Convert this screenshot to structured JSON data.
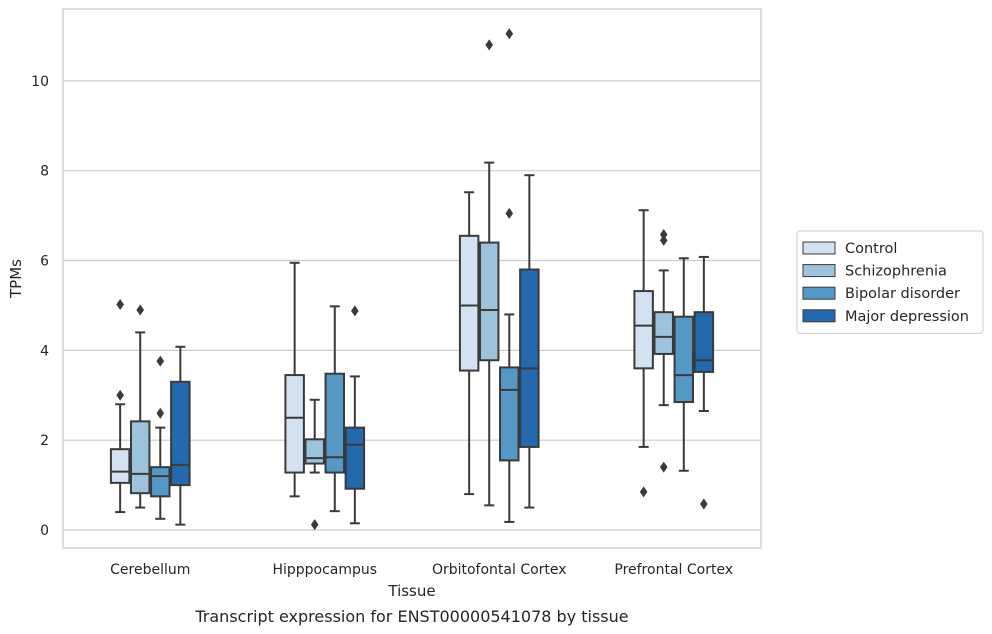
{
  "chart_data": {
    "type": "box",
    "title": "",
    "caption": "Transcript expression for ENST00000541078 by tissue",
    "xlabel": "Tissue",
    "ylabel": "TPMs",
    "ylim": [
      -0.4,
      11.6
    ],
    "yticks": [
      0,
      2,
      4,
      6,
      8,
      10
    ],
    "grid": "horizontal",
    "legend_position": "right",
    "categories": [
      "Cerebellum",
      "Hipppocampus",
      "Orbitofontal Cortex",
      "Prefrontal Cortex"
    ],
    "series": [
      {
        "name": "Control",
        "color": "#d3e1f0",
        "boxes": [
          {
            "whisker_low": 0.4,
            "q1": 1.05,
            "median": 1.3,
            "q3": 1.8,
            "whisker_high": 2.8,
            "outliers": [
              3.0,
              5.02
            ]
          },
          {
            "whisker_low": 0.75,
            "q1": 1.28,
            "median": 2.5,
            "q3": 3.45,
            "whisker_high": 5.95,
            "outliers": []
          },
          {
            "whisker_low": 0.8,
            "q1": 3.55,
            "median": 5.0,
            "q3": 6.55,
            "whisker_high": 7.52,
            "outliers": []
          },
          {
            "whisker_low": 1.85,
            "q1": 3.6,
            "median": 4.55,
            "q3": 5.32,
            "whisker_high": 7.12,
            "outliers": [
              0.85
            ]
          }
        ]
      },
      {
        "name": "Schizophrenia",
        "color": "#9cc2dc",
        "boxes": [
          {
            "whisker_low": 0.5,
            "q1": 0.82,
            "median": 1.25,
            "q3": 2.42,
            "whisker_high": 4.4,
            "outliers": [
              4.9
            ]
          },
          {
            "whisker_low": 1.28,
            "q1": 1.48,
            "median": 1.6,
            "q3": 2.02,
            "whisker_high": 2.9,
            "outliers": [
              0.12
            ]
          },
          {
            "whisker_low": 0.55,
            "q1": 3.78,
            "median": 4.9,
            "q3": 6.4,
            "whisker_high": 8.18,
            "outliers": [
              10.8
            ]
          },
          {
            "whisker_low": 2.78,
            "q1": 3.92,
            "median": 4.3,
            "q3": 4.85,
            "whisker_high": 5.78,
            "outliers": [
              6.45,
              6.58,
              1.4
            ]
          }
        ]
      },
      {
        "name": "Bipolar disorder",
        "color": "#5597c5",
        "boxes": [
          {
            "whisker_low": 0.25,
            "q1": 0.75,
            "median": 1.2,
            "q3": 1.4,
            "whisker_high": 2.28,
            "outliers": [
              2.6,
              3.76
            ]
          },
          {
            "whisker_low": 0.42,
            "q1": 1.28,
            "median": 1.62,
            "q3": 3.48,
            "whisker_high": 4.98,
            "outliers": []
          },
          {
            "whisker_low": 0.18,
            "q1": 1.55,
            "median": 3.12,
            "q3": 3.62,
            "whisker_high": 4.8,
            "outliers": [
              7.05,
              11.05
            ]
          },
          {
            "whisker_low": 1.32,
            "q1": 2.85,
            "median": 3.45,
            "q3": 4.75,
            "whisker_high": 6.05,
            "outliers": []
          }
        ]
      },
      {
        "name": "Major depression",
        "color": "#2468ad",
        "boxes": [
          {
            "whisker_low": 0.12,
            "q1": 1.0,
            "median": 1.45,
            "q3": 3.3,
            "whisker_high": 4.08,
            "outliers": []
          },
          {
            "whisker_low": 0.15,
            "q1": 0.92,
            "median": 1.9,
            "q3": 2.28,
            "whisker_high": 3.42,
            "outliers": [
              4.88
            ]
          },
          {
            "whisker_low": 0.5,
            "q1": 1.85,
            "median": 3.6,
            "q3": 5.8,
            "whisker_high": 7.9,
            "outliers": []
          },
          {
            "whisker_low": 2.65,
            "q1": 3.52,
            "median": 3.78,
            "q3": 4.85,
            "whisker_high": 6.08,
            "outliers": [
              0.58
            ]
          }
        ]
      }
    ]
  }
}
